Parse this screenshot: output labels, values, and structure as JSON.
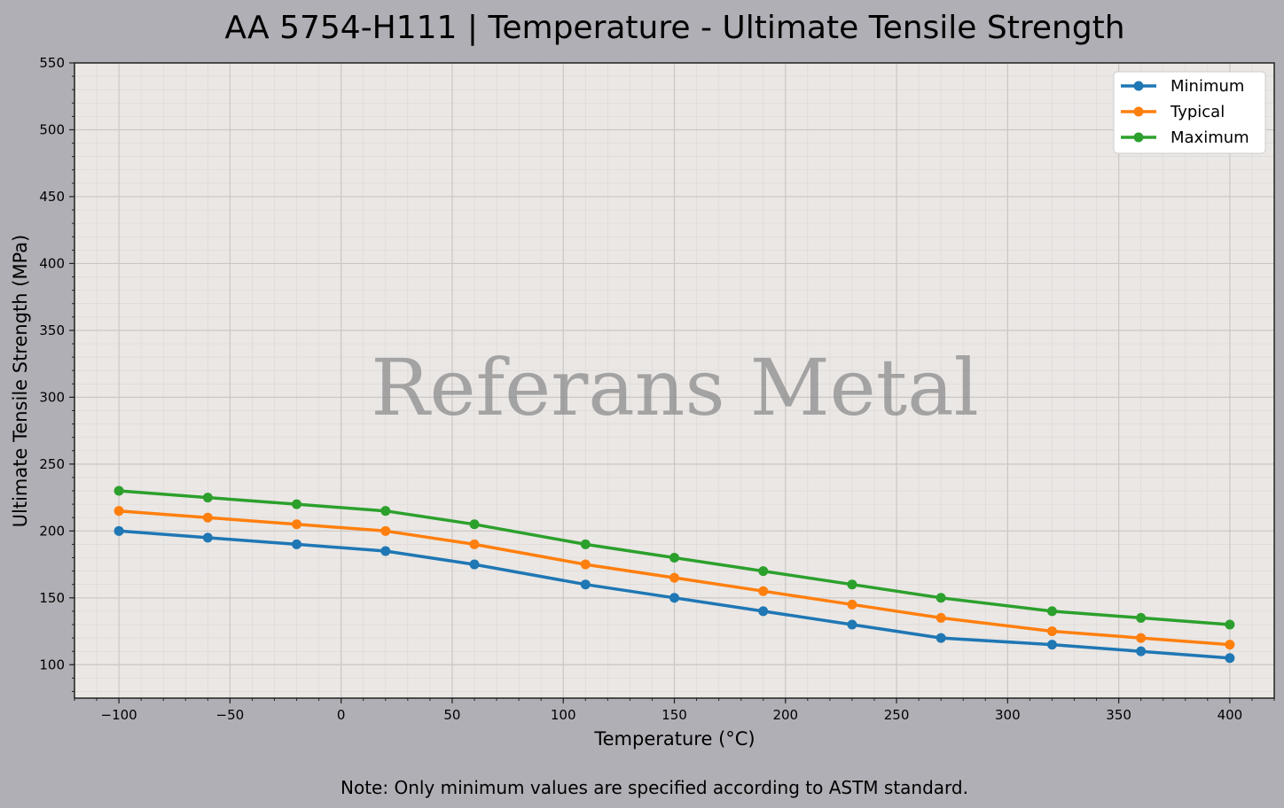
{
  "chart_data": {
    "type": "line",
    "title": "AA 5754-H111 | Temperature - Ultimate Tensile Strength",
    "xlabel": "Temperature (°C)",
    "ylabel": "Ultimate Tensile Strength (MPa)",
    "xlim": [
      -120,
      420
    ],
    "ylim": [
      75,
      550
    ],
    "xticks": [
      -100,
      -50,
      0,
      50,
      100,
      150,
      200,
      250,
      300,
      350,
      400
    ],
    "xtick_labels": [
      "−100",
      "−50",
      "0",
      "50",
      "100",
      "150",
      "200",
      "250",
      "300",
      "350",
      "400"
    ],
    "yticks": [
      100,
      150,
      200,
      250,
      300,
      350,
      400,
      450,
      500,
      550
    ],
    "ytick_labels": [
      "100",
      "150",
      "200",
      "250",
      "300",
      "350",
      "400",
      "450",
      "500",
      "550"
    ],
    "grid": true,
    "legend_position": "top-right",
    "x": [
      -100,
      -60,
      -20,
      20,
      60,
      110,
      150,
      190,
      230,
      270,
      320,
      360,
      400
    ],
    "series": [
      {
        "name": "Minimum",
        "color": "#1f77b4",
        "values": [
          200,
          195,
          190,
          185,
          175,
          160,
          150,
          140,
          130,
          120,
          115,
          110,
          105
        ]
      },
      {
        "name": "Typical",
        "color": "#ff7f0e",
        "values": [
          215,
          210,
          205,
          200,
          190,
          175,
          165,
          155,
          145,
          135,
          125,
          120,
          115
        ]
      },
      {
        "name": "Maximum",
        "color": "#2ca02c",
        "values": [
          230,
          225,
          220,
          215,
          205,
          190,
          180,
          170,
          160,
          150,
          140,
          135,
          130
        ]
      }
    ]
  },
  "watermark": "Referans Metal",
  "note": "Note: Only minimum values are specified according to ASTM standard."
}
